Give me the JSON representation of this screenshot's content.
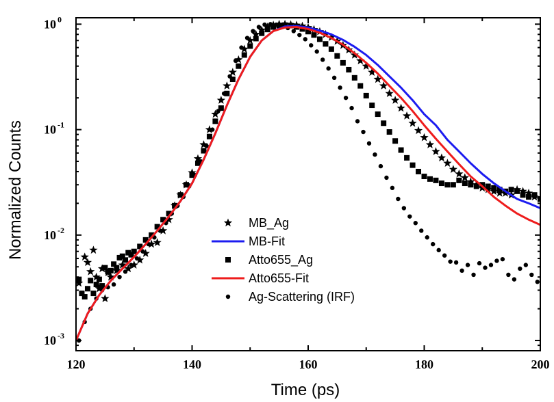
{
  "chart_data": {
    "type": "scatter",
    "title": "",
    "xlabel": "Time (ps)",
    "ylabel": "Normalized Counts",
    "xlim": [
      120,
      200
    ],
    "ylim": [
      0.0008,
      1.15
    ],
    "yscale": "log",
    "grid": false,
    "legend_position": "center-bottom",
    "x_ticks": [
      {
        "value": 120,
        "label": "120"
      },
      {
        "value": 140,
        "label": "140"
      },
      {
        "value": 160,
        "label": "160"
      },
      {
        "value": 180,
        "label": "180"
      },
      {
        "value": 200,
        "label": "200"
      }
    ],
    "y_ticks": [
      {
        "value": 0.001,
        "base": "10",
        "exp": "-3"
      },
      {
        "value": 0.01,
        "base": "10",
        "exp": "-2"
      },
      {
        "value": 0.1,
        "base": "10",
        "exp": "-1"
      },
      {
        "value": 1,
        "base": "10",
        "exp": "0"
      }
    ],
    "series": [
      {
        "name": "MB_Ag",
        "style": "star-markers",
        "color": "#000000",
        "x": [
          120.5,
          121.5,
          122.0,
          122.5,
          123.0,
          123.5,
          124.0,
          124.5,
          125.0,
          125.5,
          126.0,
          127.0,
          128.0,
          129.0,
          130.0,
          131.0,
          132.0,
          133.0,
          134.0,
          135.0,
          136.0,
          137.0,
          138.0,
          139.0,
          140.0,
          141.0,
          142.0,
          143.0,
          144.0,
          145.0,
          146.0,
          147.0,
          148.0,
          149.0,
          150.0,
          151.0,
          152.0,
          153.0,
          154.0,
          155.0,
          156.0,
          157.0,
          158.0,
          159.0,
          160.0,
          161.0,
          162.0,
          163.0,
          164.0,
          165.0,
          166.0,
          167.0,
          168.0,
          169.0,
          170.0,
          171.0,
          172.0,
          173.0,
          174.0,
          175.0,
          176.0,
          177.0,
          178.0,
          179.0,
          180.0,
          181.0,
          182.0,
          183.0,
          184.0,
          185.0,
          186.0,
          187.0,
          188.0,
          189.0,
          190.0,
          191.0,
          192.0,
          193.0,
          194.0,
          195.0,
          196.0,
          197.0,
          198.0,
          199.0,
          200.0
        ],
        "y": [
          0.0035,
          0.0062,
          0.0055,
          0.0045,
          0.0072,
          0.004,
          0.0031,
          0.0048,
          0.0025,
          0.0044,
          0.004,
          0.0046,
          0.0052,
          0.0048,
          0.0052,
          0.0058,
          0.0067,
          0.0082,
          0.0085,
          0.011,
          0.014,
          0.019,
          0.024,
          0.03,
          0.039,
          0.053,
          0.072,
          0.1,
          0.14,
          0.19,
          0.26,
          0.35,
          0.46,
          0.58,
          0.7,
          0.8,
          0.88,
          0.94,
          0.98,
          1.0,
          1.0,
          0.99,
          0.98,
          0.96,
          0.93,
          0.89,
          0.85,
          0.8,
          0.75,
          0.69,
          0.63,
          0.57,
          0.51,
          0.45,
          0.4,
          0.35,
          0.3,
          0.26,
          0.22,
          0.19,
          0.16,
          0.135,
          0.115,
          0.098,
          0.084,
          0.072,
          0.062,
          0.054,
          0.048,
          0.042,
          0.038,
          0.035,
          0.032,
          0.03,
          0.028,
          0.027,
          0.026,
          0.025,
          0.025,
          0.024,
          0.027,
          0.026,
          0.025,
          0.023,
          0.022
        ]
      },
      {
        "name": "MB-Fit",
        "style": "line",
        "color": "#1c1cf0",
        "x": [
          120,
          122,
          124,
          126,
          128,
          130,
          132,
          134,
          136,
          138,
          140,
          142,
          144,
          146,
          148,
          150,
          152,
          154,
          156,
          158,
          160,
          162,
          164,
          166,
          168,
          170,
          172,
          174,
          176,
          178,
          180,
          182,
          184,
          186,
          188,
          190,
          192,
          194,
          196,
          198,
          200
        ],
        "y": [
          0.001,
          0.0018,
          0.0027,
          0.0037,
          0.0048,
          0.0062,
          0.0082,
          0.011,
          0.015,
          0.021,
          0.031,
          0.052,
          0.092,
          0.17,
          0.3,
          0.49,
          0.7,
          0.86,
          0.95,
          0.96,
          0.93,
          0.87,
          0.8,
          0.71,
          0.61,
          0.51,
          0.41,
          0.32,
          0.25,
          0.19,
          0.14,
          0.11,
          0.08,
          0.062,
          0.048,
          0.038,
          0.031,
          0.026,
          0.022,
          0.02,
          0.018
        ]
      },
      {
        "name": "Atto655_Ag",
        "style": "square-markers",
        "color": "#000000",
        "x": [
          120.5,
          121.0,
          121.5,
          122.0,
          122.5,
          123.0,
          123.5,
          124.0,
          124.5,
          125.0,
          125.5,
          126.0,
          126.5,
          127.0,
          127.5,
          128.0,
          128.5,
          129.0,
          129.5,
          130.0,
          131.0,
          132.0,
          133.0,
          134.0,
          135.0,
          136.0,
          137.0,
          138.0,
          139.0,
          140.0,
          141.0,
          142.0,
          143.0,
          144.0,
          145.0,
          146.0,
          147.0,
          148.0,
          149.0,
          150.0,
          151.0,
          152.0,
          153.0,
          154.0,
          155.0,
          156.0,
          157.0,
          158.0,
          159.0,
          160.0,
          161.0,
          162.0,
          163.0,
          164.0,
          165.0,
          166.0,
          167.0,
          168.0,
          169.0,
          170.0,
          171.0,
          172.0,
          173.0,
          174.0,
          175.0,
          176.0,
          177.0,
          178.0,
          179.0,
          180.0,
          181.0,
          182.0,
          183.0,
          184.0,
          185.0,
          186.0,
          187.0,
          188.0,
          189.0,
          190.0,
          191.0,
          192.0,
          193.0,
          194.0,
          195.0,
          196.0,
          197.0,
          198.0,
          199.0,
          200.0
        ],
        "y": [
          0.0038,
          0.0028,
          0.0026,
          0.0031,
          0.0037,
          0.0028,
          0.0034,
          0.0038,
          0.0033,
          0.0049,
          0.0045,
          0.0046,
          0.0053,
          0.0049,
          0.0061,
          0.0063,
          0.0058,
          0.0068,
          0.0065,
          0.007,
          0.0078,
          0.009,
          0.01,
          0.012,
          0.014,
          0.016,
          0.019,
          0.024,
          0.03,
          0.037,
          0.048,
          0.063,
          0.086,
          0.12,
          0.16,
          0.22,
          0.3,
          0.4,
          0.51,
          0.62,
          0.73,
          0.82,
          0.89,
          0.94,
          0.97,
          0.98,
          0.97,
          0.94,
          0.9,
          0.85,
          0.79,
          0.72,
          0.65,
          0.58,
          0.5,
          0.43,
          0.37,
          0.31,
          0.26,
          0.21,
          0.17,
          0.14,
          0.115,
          0.095,
          0.078,
          0.064,
          0.054,
          0.046,
          0.04,
          0.036,
          0.034,
          0.033,
          0.031,
          0.03,
          0.03,
          0.033,
          0.031,
          0.03,
          0.029,
          0.03,
          0.029,
          0.028,
          0.027,
          0.026,
          0.027,
          0.026,
          0.024,
          0.023,
          0.024,
          0.022
        ]
      },
      {
        "name": "Atto655-Fit",
        "style": "line",
        "color": "#ee1c1c",
        "x": [
          120,
          122,
          124,
          126,
          128,
          130,
          132,
          134,
          136,
          138,
          140,
          142,
          144,
          146,
          148,
          150,
          152,
          154,
          156,
          158,
          160,
          162,
          164,
          166,
          168,
          170,
          172,
          174,
          176,
          178,
          180,
          182,
          184,
          186,
          188,
          190,
          192,
          194,
          196,
          198,
          200
        ],
        "y": [
          0.001,
          0.0018,
          0.0027,
          0.0037,
          0.0048,
          0.0062,
          0.0082,
          0.011,
          0.015,
          0.021,
          0.031,
          0.052,
          0.092,
          0.17,
          0.3,
          0.49,
          0.7,
          0.86,
          0.93,
          0.94,
          0.9,
          0.83,
          0.74,
          0.64,
          0.53,
          0.43,
          0.34,
          0.26,
          0.2,
          0.15,
          0.11,
          0.082,
          0.062,
          0.047,
          0.036,
          0.029,
          0.023,
          0.019,
          0.016,
          0.014,
          0.0125
        ]
      },
      {
        "name": "Ag-Scattering (IRF)",
        "style": "dot-markers",
        "color": "#000000",
        "x": [
          120.5,
          121.5,
          122.5,
          123.5,
          124.5,
          125.5,
          126.5,
          127.5,
          128.5,
          129.5,
          130.5,
          131.5,
          132.5,
          133.5,
          134.5,
          135.5,
          136.5,
          137.5,
          138.5,
          139.5,
          140.5,
          141.5,
          142.5,
          143.5,
          144.5,
          145.5,
          146.5,
          147.5,
          148.5,
          149.5,
          150.5,
          151.5,
          152.5,
          153.5,
          154.5,
          155.5,
          156.5,
          157.5,
          158.5,
          159.5,
          160.5,
          161.5,
          162.5,
          163.5,
          164.5,
          165.5,
          166.5,
          167.5,
          168.5,
          169.5,
          170.5,
          171.5,
          172.5,
          173.5,
          174.5,
          175.5,
          176.5,
          177.5,
          178.5,
          179.5,
          180.5,
          181.5,
          182.5,
          183.5,
          184.5,
          185.5,
          186.5,
          187.5,
          188.5,
          189.5,
          190.5,
          191.5,
          192.5,
          193.5,
          194.5,
          195.5,
          196.5,
          197.5,
          198.5,
          199.5
        ],
        "y": [
          0.001,
          0.0015,
          0.002,
          0.0025,
          0.003,
          0.0032,
          0.0034,
          0.004,
          0.0045,
          0.0052,
          0.006,
          0.007,
          0.0082,
          0.0095,
          0.011,
          0.013,
          0.016,
          0.019,
          0.023,
          0.029,
          0.037,
          0.05,
          0.07,
          0.1,
          0.15,
          0.22,
          0.32,
          0.45,
          0.6,
          0.74,
          0.86,
          0.94,
          0.99,
          1.0,
          0.99,
          0.96,
          0.92,
          0.86,
          0.79,
          0.72,
          0.63,
          0.55,
          0.46,
          0.38,
          0.31,
          0.25,
          0.2,
          0.16,
          0.12,
          0.095,
          0.074,
          0.058,
          0.045,
          0.035,
          0.028,
          0.022,
          0.018,
          0.015,
          0.013,
          0.011,
          0.0095,
          0.0082,
          0.0072,
          0.0064,
          0.0056,
          0.0055,
          0.0046,
          0.0052,
          0.0042,
          0.0054,
          0.0049,
          0.0052,
          0.0057,
          0.0059,
          0.0042,
          0.0038,
          0.0048,
          0.0052,
          0.0042,
          0.0036
        ]
      }
    ]
  }
}
